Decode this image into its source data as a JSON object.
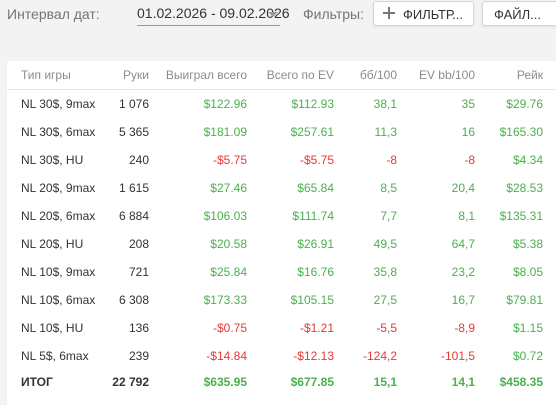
{
  "toolbar": {
    "interval_label": "Интервал дат:",
    "date_range": "01.02.2026 - 09.02.2026",
    "filters_label": "Фильтры:",
    "filters_button": "ФИЛЬТР...",
    "file_button": "ФАЙЛ..."
  },
  "colors": {
    "positive": "#4caf50",
    "negative": "#e53935"
  },
  "table": {
    "headers": {
      "type": "Тип игры",
      "hands": "Руки",
      "won": "Выиграл всего",
      "ev": "Всего по EV",
      "bb100": "бб/100",
      "evbb100": "EV bb/100",
      "rake": "Рейк"
    },
    "rows": [
      {
        "type": "NL 30$, 9max",
        "hands": "1 076",
        "won": "$122.96",
        "ev": "$112.93",
        "bb100": "38,1",
        "evbb100": "35",
        "rake": "$29.76"
      },
      {
        "type": "NL 30$, 6max",
        "hands": "5 365",
        "won": "$181.09",
        "ev": "$257.61",
        "bb100": "11,3",
        "evbb100": "16",
        "rake": "$165.30"
      },
      {
        "type": "NL 30$, HU",
        "hands": "240",
        "won": "-$5.75",
        "ev": "-$5.75",
        "bb100": "-8",
        "evbb100": "-8",
        "rake": "$4.34"
      },
      {
        "type": "NL 20$, 9max",
        "hands": "1 615",
        "won": "$27.46",
        "ev": "$65.84",
        "bb100": "8,5",
        "evbb100": "20,4",
        "rake": "$28.53"
      },
      {
        "type": "NL 20$, 6max",
        "hands": "6 884",
        "won": "$106.03",
        "ev": "$111.74",
        "bb100": "7,7",
        "evbb100": "8,1",
        "rake": "$135.31"
      },
      {
        "type": "NL 20$, HU",
        "hands": "208",
        "won": "$20.58",
        "ev": "$26.91",
        "bb100": "49,5",
        "evbb100": "64,7",
        "rake": "$5.38"
      },
      {
        "type": "NL 10$, 9max",
        "hands": "721",
        "won": "$25.84",
        "ev": "$16.76",
        "bb100": "35,8",
        "evbb100": "23,2",
        "rake": "$8.05"
      },
      {
        "type": "NL 10$, 6max",
        "hands": "6 308",
        "won": "$173.33",
        "ev": "$105.15",
        "bb100": "27,5",
        "evbb100": "16,7",
        "rake": "$79.81"
      },
      {
        "type": "NL 10$, HU",
        "hands": "136",
        "won": "-$0.75",
        "ev": "-$1.21",
        "bb100": "-5,5",
        "evbb100": "-8,9",
        "rake": "$1.15"
      },
      {
        "type": "NL 5$, 6max",
        "hands": "239",
        "won": "-$14.84",
        "ev": "-$12.13",
        "bb100": "-124,2",
        "evbb100": "-101,5",
        "rake": "$0.72"
      }
    ],
    "total": {
      "type": "ИТОГ",
      "hands": "22 792",
      "won": "$635.95",
      "ev": "$677.85",
      "bb100": "15,1",
      "evbb100": "14,1",
      "rake": "$458.35"
    }
  }
}
